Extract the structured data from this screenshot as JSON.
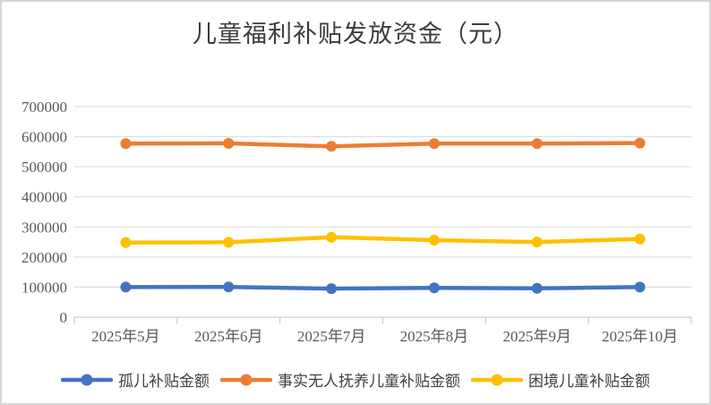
{
  "chart_data": {
    "type": "line",
    "title": "儿童福利补贴发放资金（元）",
    "categories": [
      "2025年5月",
      "2025年6月",
      "2025年7月",
      "2025年8月",
      "2025年9月",
      "2025年10月"
    ],
    "series": [
      {
        "name": "孤儿补贴金额",
        "color": "#4472C4",
        "values": [
          100000,
          100500,
          95000,
          97500,
          96000,
          100000
        ]
      },
      {
        "name": "事实无人抚养儿童补贴金额",
        "color": "#ED7D31",
        "values": [
          577000,
          578000,
          568000,
          577000,
          577000,
          579000
        ]
      },
      {
        "name": "困境儿童补贴金额",
        "color": "#FFC000",
        "values": [
          248000,
          249000,
          266000,
          256000,
          250000,
          260000
        ]
      }
    ],
    "xlabel": "",
    "ylabel": "",
    "ylim": [
      0,
      700000
    ],
    "ytick_step": 100000,
    "ytick_labels": [
      "0",
      "100000",
      "200000",
      "300000",
      "400000",
      "500000",
      "600000",
      "700000"
    ],
    "grid": true,
    "legend_position": "bottom",
    "marker": "circle",
    "colors": {
      "grid_line": "#d9d9d9",
      "axis_line": "#bfbfbf",
      "tick_label": "#595959",
      "title_text": "#3d3d3d",
      "legend_text": "#404040",
      "frame_border": "#d6d6d6",
      "background": "#ffffff"
    }
  }
}
